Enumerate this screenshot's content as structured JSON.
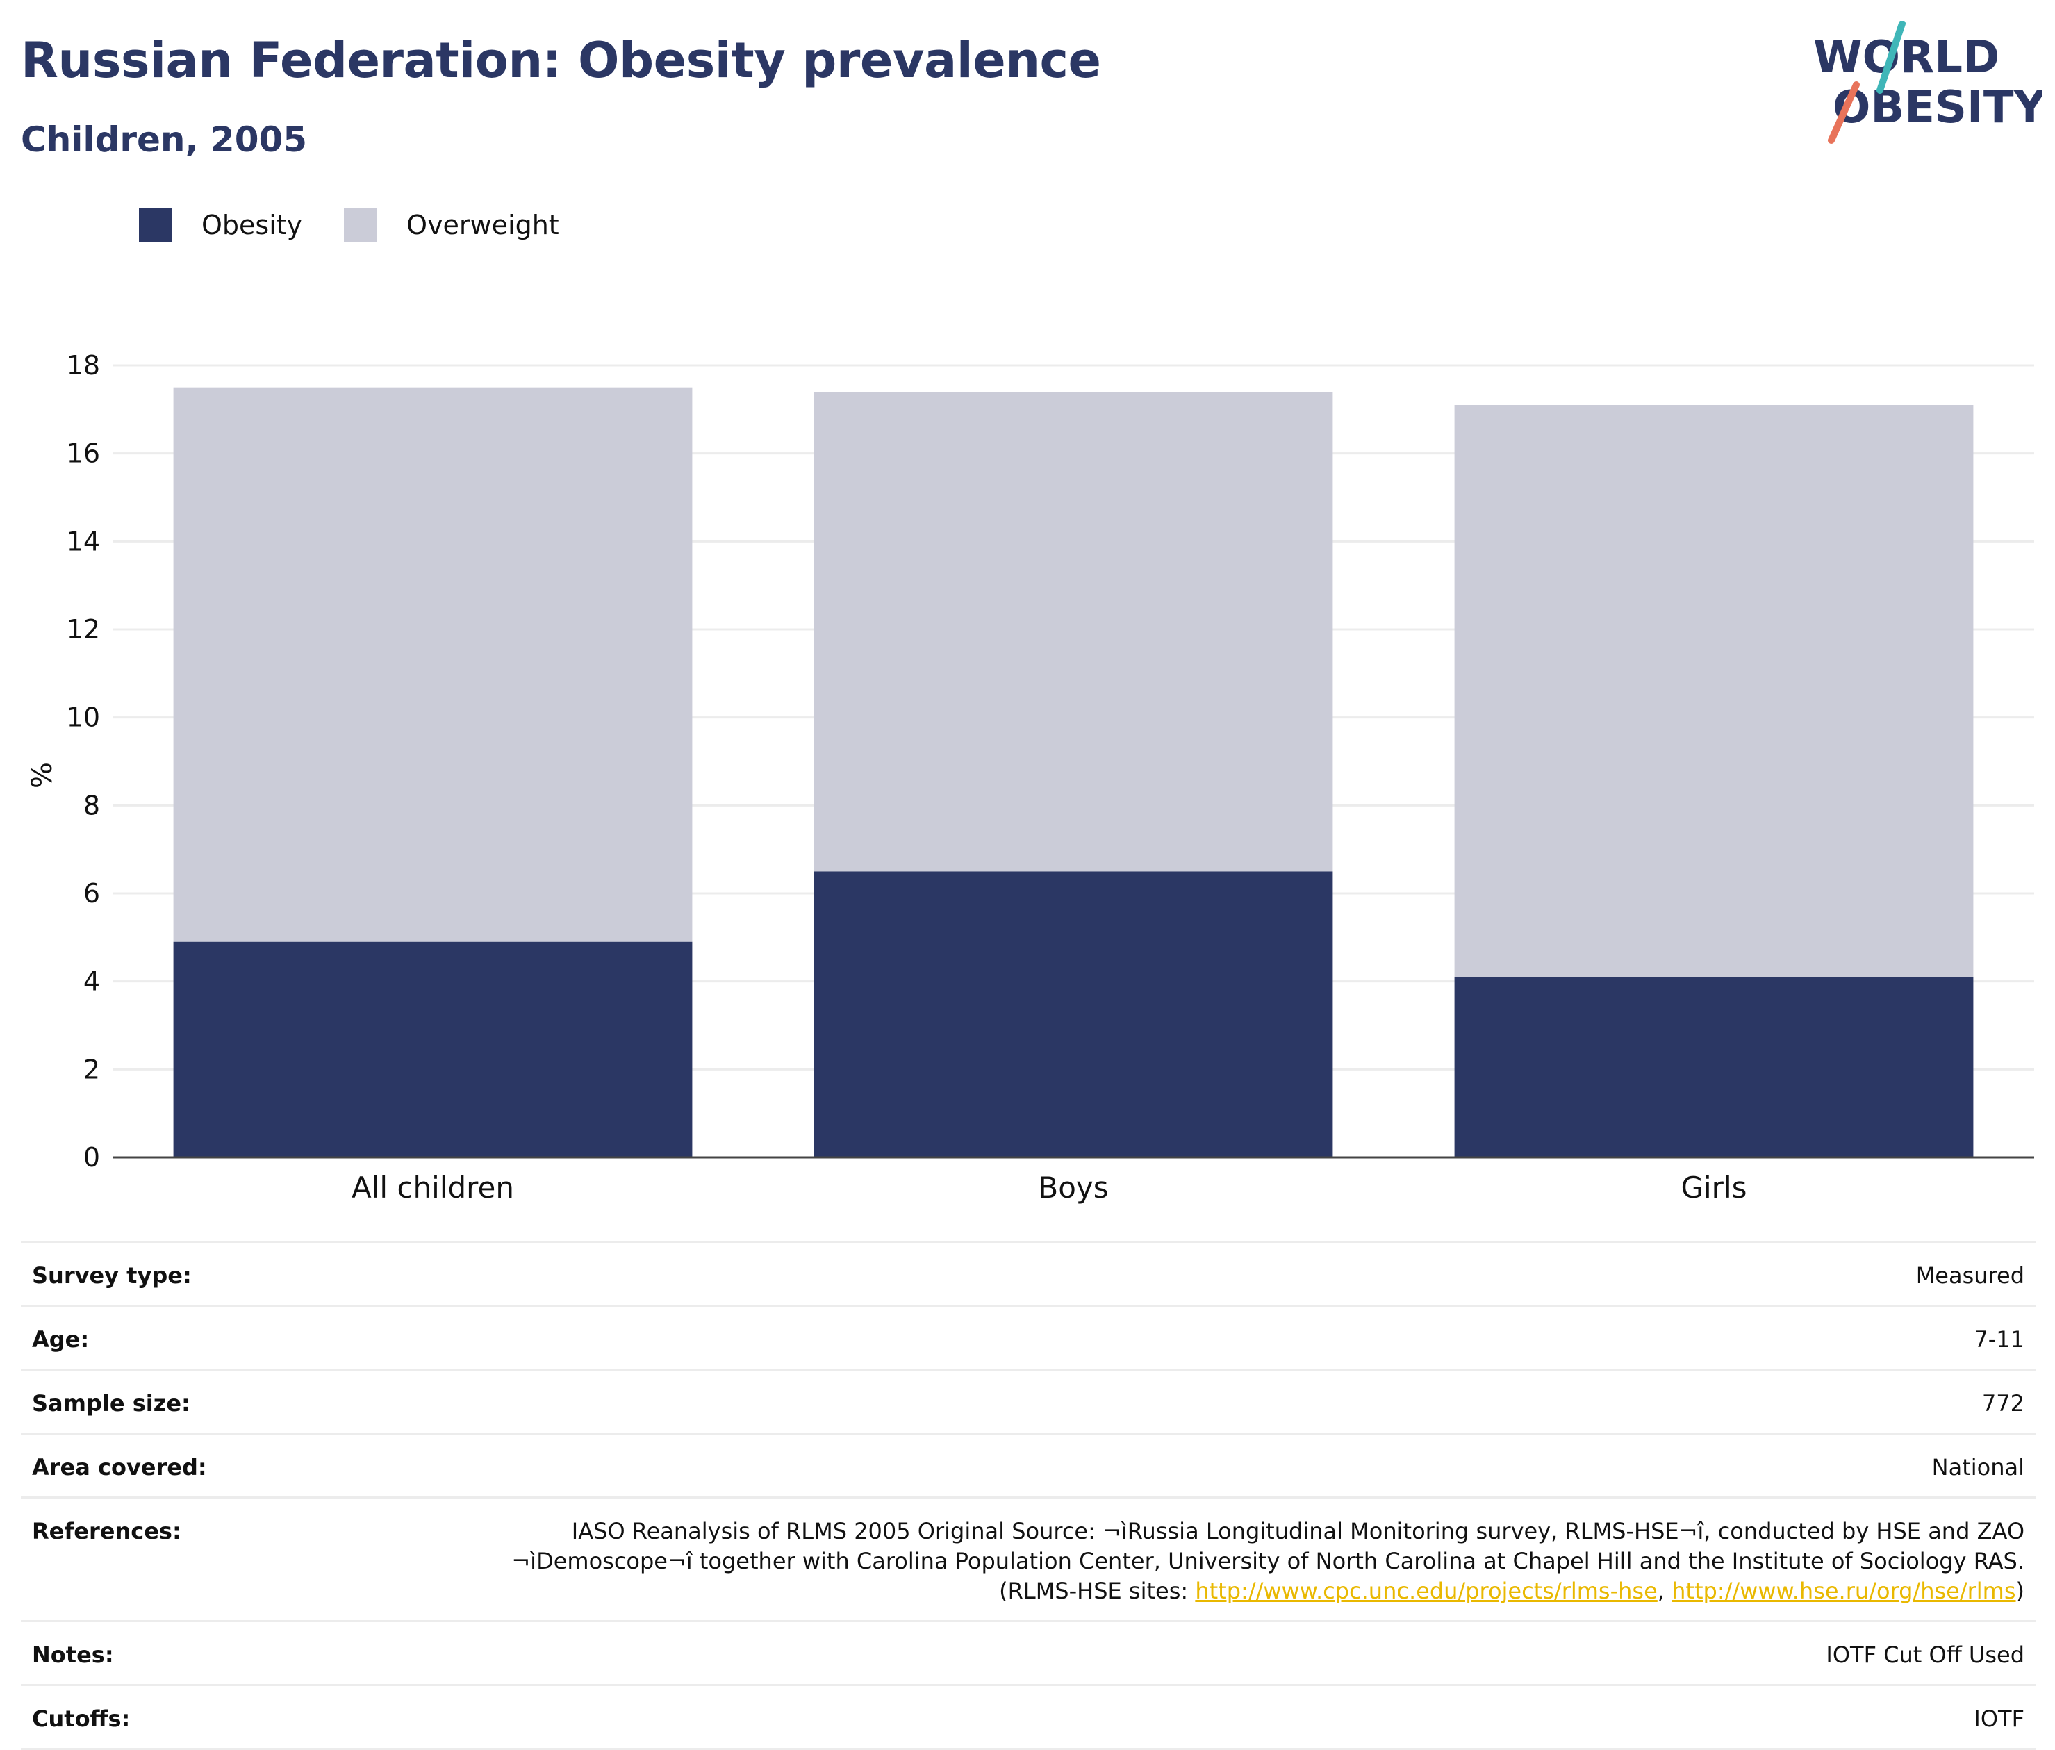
{
  "header": {
    "title": "Russian Federation: Obesity prevalence",
    "subtitle": "Children, 2005",
    "logo_line1": "WORLD",
    "logo_line2": "OBESITY"
  },
  "colors": {
    "obesity": "#2b3764",
    "overweight": "#cbccd8",
    "gridline": "#ececec",
    "axis": "#444444",
    "link": "#e9b800",
    "logo_teal": "#3fb6b8",
    "logo_coral": "#e8735a"
  },
  "chart_data": {
    "type": "bar",
    "stacked": true,
    "categories": [
      "All children",
      "Boys",
      "Girls"
    ],
    "series": [
      {
        "name": "Obesity",
        "values": [
          4.9,
          6.5,
          4.1
        ]
      },
      {
        "name": "Overweight",
        "values": [
          12.6,
          10.9,
          13.0
        ]
      }
    ],
    "ylabel": "%",
    "ylim": [
      0,
      18
    ],
    "yticks": [
      0,
      2,
      4,
      6,
      8,
      10,
      12,
      14,
      16,
      18
    ],
    "grid": true,
    "legend": "top-left"
  },
  "meta": {
    "survey_type": {
      "label": "Survey type:",
      "value": "Measured"
    },
    "age": {
      "label": "Age:",
      "value": "7-11"
    },
    "sample_size": {
      "label": "Sample size:",
      "value": "772"
    },
    "area": {
      "label": "Area covered:",
      "value": "National"
    },
    "references": {
      "label": "References:",
      "line1": "IASO Reanalysis of RLMS 2005 Original Source: ¬ìRussia Longitudinal Monitoring survey, RLMS-HSE¬î, conducted by HSE and ZAO",
      "line2": "¬ìDemoscope¬î together with Carolina Population Center, University of North Carolina at Chapel Hill and the Institute of Sociology RAS.",
      "line3_prefix": "(RLMS-HSE sites: ",
      "link1": "http://www.cpc.unc.edu/projects/rlms-hse",
      "sep": ", ",
      "link2": "http://www.hse.ru/org/hse/rlms",
      "line3_suffix": ")"
    },
    "notes": {
      "label": "Notes:",
      "value": "IOTF Cut Off Used"
    },
    "cutoffs": {
      "label": "Cutoffs:",
      "value": "IOTF"
    }
  }
}
